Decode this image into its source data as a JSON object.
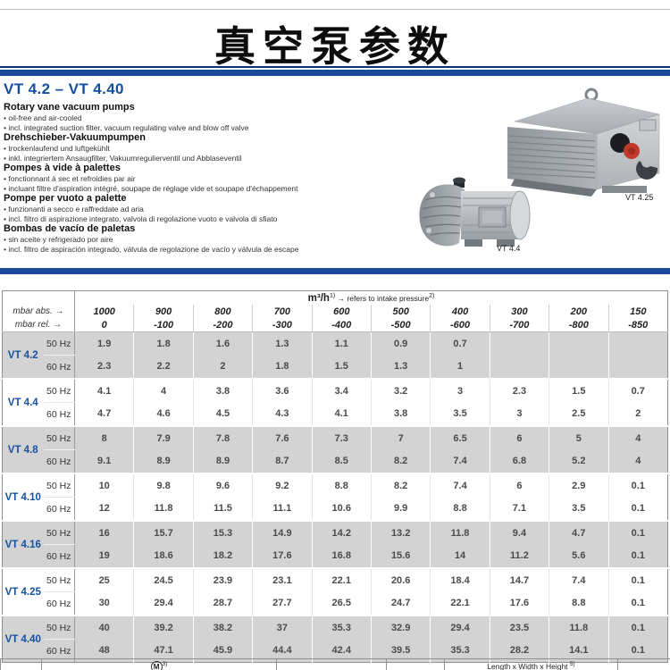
{
  "page": {
    "title": "真空泵参数"
  },
  "section": {
    "heading": "VT 4.2 – VT 4.40",
    "descriptions": [
      {
        "title": "Rotary vane vacuum pumps",
        "bullets": [
          "oil-free and air-cooled",
          "incl. integrated suction filter, vacuum regulating valve and blow off valve"
        ]
      },
      {
        "title": "Drehschieber-Vakuumpumpen",
        "bullets": [
          "trockenlaufend und luftgekühlt",
          "inkl. integriertem Ansaugfilter, Vakuumregulierventil und Abblaseventil"
        ]
      },
      {
        "title": "Pompes à vide à palettes",
        "bullets": [
          "fonctionnant à sec et refroidies par air",
          "incluant filtre d'aspiration intégré, soupape de réglage vide et soupape d'échappement"
        ]
      },
      {
        "title": "Pompe per vuoto a palette",
        "bullets": [
          "funzionanti a secco e raffreddate ad aria",
          "incl. filtro di aspirazione integrato, valvola di regolazione vuoto e valvola di sfiato"
        ]
      },
      {
        "title": "Bombas de vacío de paletas",
        "bullets": [
          "sin aceite y refrigerado por aire",
          "incl. filtro de aspiración integrado, válvula de regolazione de vacío y válvula de escape"
        ]
      }
    ],
    "photos": [
      {
        "label": "VT 4.25"
      },
      {
        "label": "VT 4.4"
      }
    ]
  },
  "table": {
    "flow_header": {
      "unit": "m³/h",
      "sup1": "1)",
      "note": "→ refers to intake pressure",
      "sup2": "2)"
    },
    "row_labels": {
      "abs": "mbar abs. →",
      "rel": "mbar rel. →"
    },
    "pressure_abs": [
      "1000",
      "900",
      "800",
      "700",
      "600",
      "500",
      "400",
      "300",
      "200",
      "150"
    ],
    "pressure_rel": [
      "0",
      "-100",
      "-200",
      "-300",
      "-400",
      "-500",
      "-600",
      "-700",
      "-800",
      "-850"
    ],
    "hz_labels": [
      "50 Hz",
      "60 Hz"
    ],
    "models": [
      {
        "name": "VT 4.2",
        "hz50": [
          "1.9",
          "1.8",
          "1.6",
          "1.3",
          "1.1",
          "0.9",
          "0.7",
          "",
          "",
          ""
        ],
        "hz60": [
          "2.3",
          "2.2",
          "2",
          "1.8",
          "1.5",
          "1.3",
          "1",
          "",
          "",
          ""
        ]
      },
      {
        "name": "VT 4.4",
        "hz50": [
          "4.1",
          "4",
          "3.8",
          "3.6",
          "3.4",
          "3.2",
          "3",
          "2.3",
          "1.5",
          "0.7"
        ],
        "hz60": [
          "4.7",
          "4.6",
          "4.5",
          "4.3",
          "4.1",
          "3.8",
          "3.5",
          "3",
          "2.5",
          "2"
        ]
      },
      {
        "name": "VT 4.8",
        "hz50": [
          "8",
          "7.9",
          "7.8",
          "7.6",
          "7.3",
          "7",
          "6.5",
          "6",
          "5",
          "4"
        ],
        "hz60": [
          "9.1",
          "8.9",
          "8.9",
          "8.7",
          "8.5",
          "8.2",
          "7.4",
          "6.8",
          "5.2",
          "4"
        ]
      },
      {
        "name": "VT 4.10",
        "hz50": [
          "10",
          "9.8",
          "9.6",
          "9.2",
          "8.8",
          "8.2",
          "7.4",
          "6",
          "2.9",
          "0.1"
        ],
        "hz60": [
          "12",
          "11.8",
          "11.5",
          "11.1",
          "10.6",
          "9.9",
          "8.8",
          "7.1",
          "3.5",
          "0.1"
        ]
      },
      {
        "name": "VT 4.16",
        "hz50": [
          "16",
          "15.7",
          "15.3",
          "14.9",
          "14.2",
          "13.2",
          "11.8",
          "9.4",
          "4.7",
          "0.1"
        ],
        "hz60": [
          "19",
          "18.6",
          "18.2",
          "17.6",
          "16.8",
          "15.6",
          "14",
          "11.2",
          "5.6",
          "0.1"
        ]
      },
      {
        "name": "VT 4.25",
        "hz50": [
          "25",
          "24.5",
          "23.9",
          "23.1",
          "22.1",
          "20.6",
          "18.4",
          "14.7",
          "7.4",
          "0.1"
        ],
        "hz60": [
          "30",
          "29.4",
          "28.7",
          "27.7",
          "26.5",
          "24.7",
          "22.1",
          "17.6",
          "8.8",
          "0.1"
        ]
      },
      {
        "name": "VT 4.40",
        "hz50": [
          "40",
          "39.2",
          "38.2",
          "37",
          "35.3",
          "32.9",
          "29.4",
          "23.5",
          "11.8",
          "0.1"
        ],
        "hz60": [
          "48",
          "47.1",
          "45.9",
          "44.4",
          "42.4",
          "39.5",
          "35.3",
          "28.2",
          "14.1",
          "0.1"
        ]
      }
    ]
  },
  "bottom_table": {
    "motor_symbol": "M",
    "motor_sup": "3)",
    "dims_label": "Length x Width x Height",
    "dims_sup": "5)"
  },
  "colors": {
    "accent_blue": "#1c4a9a",
    "heading_blue": "#164f9e",
    "row_gray": "#d3d3d3"
  }
}
